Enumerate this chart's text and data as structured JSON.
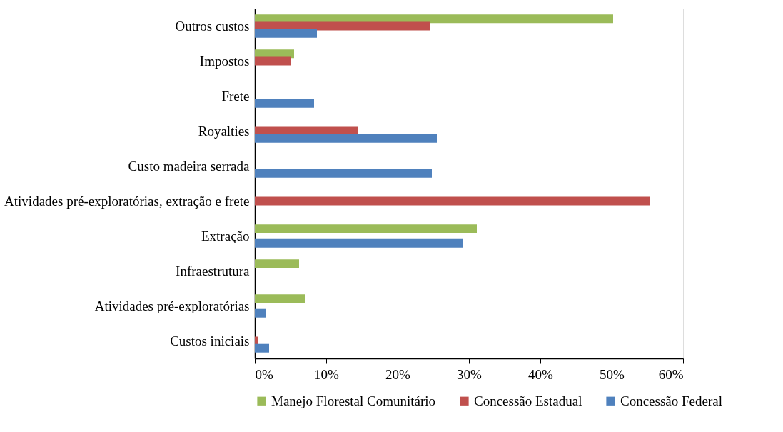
{
  "chart_data": {
    "type": "bar",
    "orientation": "horizontal",
    "categories": [
      "Outros custos",
      "Impostos",
      "Frete",
      "Royalties",
      "Custo madeira serrada",
      "Atividades pré-exploratórias, extração e frete",
      "Extração",
      "Infraestrutura",
      "Atividades pré-exploratórias",
      "Custos iniciais"
    ],
    "series": [
      {
        "name": "Manejo Florestal Comunitário",
        "color": "#9bbb59",
        "values": [
          50.2,
          5.5,
          null,
          null,
          null,
          null,
          31.1,
          6.2,
          7.0,
          null
        ]
      },
      {
        "name": "Concessão Estadual",
        "color": "#c0504d",
        "values": [
          24.6,
          5.1,
          null,
          14.4,
          null,
          55.4,
          null,
          null,
          null,
          0.5
        ]
      },
      {
        "name": "Concessão Federal",
        "color": "#4f81bd",
        "values": [
          8.7,
          null,
          8.3,
          25.5,
          24.8,
          null,
          29.1,
          null,
          1.6,
          2.0
        ]
      }
    ],
    "xlim": [
      0,
      60
    ],
    "xticks": [
      {
        "value": 0,
        "label": "0%"
      },
      {
        "value": 10,
        "label": "10%"
      },
      {
        "value": 20,
        "label": "20%"
      },
      {
        "value": 30,
        "label": "30%"
      },
      {
        "value": 40,
        "label": "40%"
      },
      {
        "value": 50,
        "label": "50%"
      },
      {
        "value": 60,
        "label": "60%"
      }
    ],
    "grid": false,
    "legend": "bottom"
  }
}
